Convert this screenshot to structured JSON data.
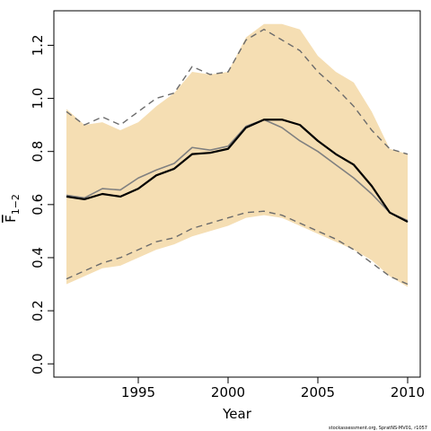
{
  "chart_data": {
    "type": "line",
    "xlabel": "Year",
    "ylabel": "F",
    "ylabel_subscript": "1−2",
    "xlim": [
      1990.3,
      2010.7
    ],
    "ylim": [
      -0.05,
      1.33
    ],
    "xticks": [
      1995,
      2000,
      2005,
      2010
    ],
    "xtick_labels": [
      "1995",
      "2000",
      "2005",
      "2010"
    ],
    "yticks": [
      0.0,
      0.2,
      0.4,
      0.6,
      0.8,
      1.0,
      1.2
    ],
    "ytick_labels": [
      "0.0",
      "0.2",
      "0.4",
      "0.6",
      "0.8",
      "1.0",
      "1.2"
    ],
    "grid": false,
    "colors": {
      "band": "#f5deb3",
      "estimate": "#000000",
      "comparison": "#808080",
      "bounds": "#6b6b6b"
    },
    "x": [
      1991,
      1992,
      1993,
      1994,
      1995,
      1996,
      1997,
      1998,
      1999,
      2000,
      2001,
      2002,
      2003,
      2004,
      2005,
      2006,
      2007,
      2008,
      2009,
      2010
    ],
    "band": {
      "lower": [
        0.3,
        0.33,
        0.36,
        0.37,
        0.4,
        0.43,
        0.45,
        0.48,
        0.5,
        0.52,
        0.55,
        0.56,
        0.55,
        0.52,
        0.49,
        0.46,
        0.43,
        0.39,
        0.33,
        0.29
      ],
      "upper": [
        0.96,
        0.9,
        0.91,
        0.88,
        0.91,
        0.97,
        1.02,
        1.1,
        1.09,
        1.1,
        1.23,
        1.28,
        1.28,
        1.26,
        1.16,
        1.1,
        1.06,
        0.95,
        0.81,
        0.79
      ]
    },
    "series": [
      {
        "role": "estimate",
        "values": [
          0.63,
          0.62,
          0.64,
          0.63,
          0.66,
          0.71,
          0.735,
          0.79,
          0.795,
          0.81,
          0.89,
          0.92,
          0.92,
          0.9,
          0.84,
          0.79,
          0.75,
          0.67,
          0.57,
          0.535
        ]
      },
      {
        "role": "comparison",
        "values": [
          0.635,
          0.625,
          0.66,
          0.655,
          0.7,
          0.73,
          0.755,
          0.815,
          0.805,
          0.82,
          0.895,
          0.92,
          0.89,
          0.84,
          0.8,
          0.75,
          0.7,
          0.64,
          0.57,
          0.54
        ]
      },
      {
        "role": "upper-bound",
        "values": [
          0.95,
          0.9,
          0.93,
          0.9,
          0.95,
          1.0,
          1.02,
          1.12,
          1.09,
          1.1,
          1.22,
          1.26,
          1.22,
          1.18,
          1.1,
          1.04,
          0.97,
          0.88,
          0.81,
          0.79
        ]
      },
      {
        "role": "lower-bound",
        "values": [
          0.32,
          0.35,
          0.38,
          0.4,
          0.43,
          0.46,
          0.475,
          0.51,
          0.53,
          0.55,
          0.57,
          0.575,
          0.56,
          0.53,
          0.5,
          0.47,
          0.43,
          0.38,
          0.33,
          0.3
        ]
      }
    ]
  },
  "footer": {
    "credit": "stockassessment.org, SpratNS-MV01, r1057"
  }
}
